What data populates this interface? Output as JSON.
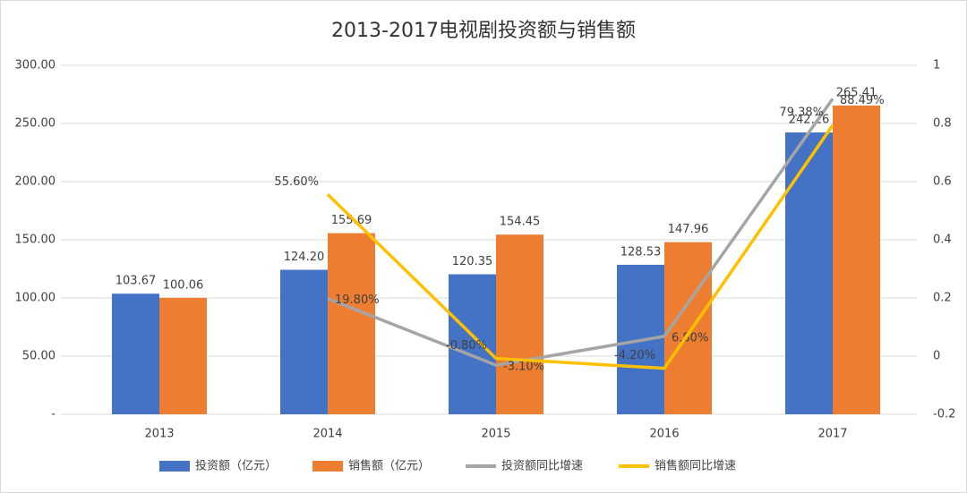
{
  "chart_data": {
    "type": "bar-line",
    "title": "2013-2017电视剧投资额与销售额",
    "categories": [
      "2013",
      "2014",
      "2015",
      "2016",
      "2017"
    ],
    "series": [
      {
        "name": "投资额（亿元）",
        "type": "bar",
        "color": "#4472c4",
        "values": [
          103.67,
          124.2,
          120.35,
          128.53,
          242.26
        ],
        "value_labels": [
          "103.67",
          "124.20",
          "120.35",
          "128.53",
          "242.26"
        ]
      },
      {
        "name": "销售额（亿元）",
        "type": "bar",
        "color": "#ed7d31",
        "values": [
          100.06,
          155.69,
          154.45,
          147.96,
          265.41
        ],
        "value_labels": [
          "100.06",
          "155.69",
          "154.45",
          "147.96",
          "265.41"
        ]
      },
      {
        "name": "投资额同比增速",
        "type": "line",
        "axis": "y2",
        "color": "#a5a5a5",
        "values": [
          null,
          0.198,
          -0.031,
          0.068,
          0.8849
        ],
        "value_labels": [
          null,
          "19.80%",
          "-3.10%",
          "6.80%",
          "88.49%"
        ]
      },
      {
        "name": "销售额同比增速",
        "type": "line",
        "axis": "y2",
        "color": "#ffc000",
        "values": [
          null,
          0.556,
          -0.008,
          -0.042,
          0.7938
        ],
        "value_labels": [
          null,
          "55.60%",
          "-0.80%",
          "-4.20%",
          "79.38%"
        ]
      }
    ],
    "ylim": [
      0,
      300
    ],
    "yticks": [
      {
        "value": 0,
        "label": "-"
      },
      {
        "value": 50,
        "label": "50.00"
      },
      {
        "value": 100,
        "label": "100.00"
      },
      {
        "value": 150,
        "label": "150.00"
      },
      {
        "value": 200,
        "label": "200.00"
      },
      {
        "value": 250,
        "label": "250.00"
      },
      {
        "value": 300,
        "label": "300.00"
      }
    ],
    "y2lim": [
      -0.2,
      1
    ],
    "y2ticks": [
      -0.2,
      0,
      0.2,
      0.4,
      0.6,
      0.8,
      1
    ],
    "grid": true,
    "legend": "bottom"
  }
}
